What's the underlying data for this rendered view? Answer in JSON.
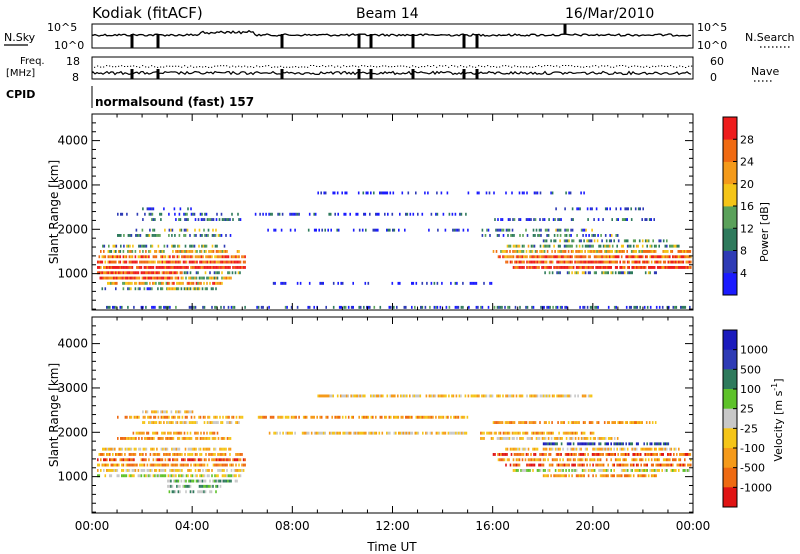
{
  "header": {
    "station": "Kodiak (fitACF)",
    "beam": "Beam 14",
    "date": "16/Mar/2010"
  },
  "panels": {
    "nsky_label": "N.Sky",
    "nsky_ticks": [
      "10^5",
      "10^0"
    ],
    "nsearch_label": "N.Search",
    "nsearch_ticks": [
      "10^5",
      "10^0"
    ],
    "freq_label_1": "Freq.",
    "freq_label_2": "[MHz]",
    "freq_ticks": [
      "18",
      "8"
    ],
    "nave_label": "Nave",
    "nave_ticks": [
      "60",
      "0"
    ],
    "cpid_label": "CPID",
    "cpid_value": "normalsound (fast) 157"
  },
  "colors": {
    "power_scale": [
      "#1b1bff",
      "#2e3bb5",
      "#2e7a5c",
      "#5aa15a",
      "#f5c518",
      "#f49a1a",
      "#f06a12",
      "#ee1c1c"
    ],
    "velocity_scale": [
      "#e01414",
      "#ee6a12",
      "#f59a1a",
      "#f5c518",
      "#c8c8c8",
      "#5ec22a",
      "#2e7a5c",
      "#2e3bb5",
      "#1b1bbd"
    ]
  },
  "chart_data": [
    {
      "type": "heatmap",
      "title": "Power",
      "xlabel": "",
      "ylabel": "Slant Range [km]",
      "x_ticks": [
        "00:00",
        "04:00",
        "08:00",
        "12:00",
        "16:00",
        "20:00",
        "00:00"
      ],
      "y_ticks": [
        "1000",
        "2000",
        "3000",
        "4000"
      ],
      "xlim_hours": [
        0,
        24
      ],
      "ylim_km": [
        180,
        4600
      ],
      "colorbar_label": "Power [dB]",
      "colorbar_ticks": [
        "4",
        "8",
        "12",
        "16",
        "20",
        "24",
        "28"
      ],
      "colorbar_range": [
        0,
        32
      ],
      "segments": [
        {
          "r0": 180,
          "r1": 300,
          "t0": 0.5,
          "t1": 24.0,
          "p": 0.2
        },
        {
          "r0": 600,
          "r1": 720,
          "t0": 0.2,
          "t1": 3.0,
          "p": 0.3
        },
        {
          "r0": 720,
          "r1": 840,
          "t0": 0.3,
          "t1": 3.0,
          "p": 0.6
        },
        {
          "r0": 840,
          "r1": 960,
          "t0": 0.3,
          "t1": 3.6,
          "p": 0.85
        },
        {
          "r0": 960,
          "r1": 1080,
          "t0": 0.2,
          "t1": 3.6,
          "p": 0.9
        },
        {
          "r0": 1080,
          "r1": 1200,
          "t0": 0.2,
          "t1": 6.1,
          "p": 0.95
        },
        {
          "r0": 1200,
          "r1": 1320,
          "t0": 0.2,
          "t1": 6.1,
          "p": 0.8
        },
        {
          "r0": 1320,
          "r1": 1440,
          "t0": 0.2,
          "t1": 6.1,
          "p": 0.75
        },
        {
          "r0": 1440,
          "r1": 1560,
          "t0": 0.2,
          "t1": 6.0,
          "p": 0.55
        },
        {
          "r0": 1560,
          "r1": 1680,
          "t0": 0.4,
          "t1": 5.5,
          "p": 0.4
        },
        {
          "r0": 1800,
          "r1": 1920,
          "t0": 1.0,
          "t1": 5.5,
          "p": 0.3
        },
        {
          "r0": 1920,
          "r1": 2040,
          "t0": 1.5,
          "t1": 5.0,
          "p": 0.35
        },
        {
          "r0": 2160,
          "r1": 2280,
          "t0": 2.0,
          "t1": 6.0,
          "p": 0.25
        },
        {
          "r0": 2280,
          "r1": 2400,
          "t0": 1.0,
          "t1": 6.0,
          "p": 0.2
        },
        {
          "r0": 2400,
          "r1": 2520,
          "t0": 2.0,
          "t1": 4.0,
          "p": 0.15
        },
        {
          "r0": 600,
          "r1": 720,
          "t0": 3.0,
          "t1": 5.0,
          "p": 0.45
        },
        {
          "r0": 720,
          "r1": 840,
          "t0": 3.0,
          "t1": 5.2,
          "p": 0.7
        },
        {
          "r0": 840,
          "r1": 960,
          "t0": 3.6,
          "t1": 5.8,
          "p": 0.55
        },
        {
          "r0": 960,
          "r1": 1080,
          "t0": 3.6,
          "t1": 5.9,
          "p": 0.4
        },
        {
          "r0": 1080,
          "r1": 1200,
          "t0": 16.8,
          "t1": 23.9,
          "p": 0.9
        },
        {
          "r0": 1200,
          "r1": 1320,
          "t0": 16.5,
          "t1": 23.9,
          "p": 0.85
        },
        {
          "r0": 1320,
          "r1": 1440,
          "t0": 16.2,
          "t1": 23.9,
          "p": 0.8
        },
        {
          "r0": 1440,
          "r1": 1560,
          "t0": 16.0,
          "t1": 23.9,
          "p": 0.65
        },
        {
          "r0": 1560,
          "r1": 1680,
          "t0": 16.5,
          "t1": 23.5,
          "p": 0.45
        },
        {
          "r0": 1680,
          "r1": 1800,
          "t0": 18.0,
          "t1": 23.0,
          "p": 0.35
        },
        {
          "r0": 1800,
          "r1": 1920,
          "t0": 15.5,
          "t1": 21.0,
          "p": 0.3
        },
        {
          "r0": 1920,
          "r1": 2040,
          "t0": 15.5,
          "t1": 20.0,
          "p": 0.3
        },
        {
          "r0": 2160,
          "r1": 2280,
          "t0": 16.0,
          "t1": 22.5,
          "p": 0.2
        },
        {
          "r0": 2400,
          "r1": 2520,
          "t0": 18.5,
          "t1": 22.0,
          "p": 0.15
        },
        {
          "r0": 960,
          "r1": 1080,
          "t0": 18.0,
          "t1": 22.5,
          "p": 0.35
        },
        {
          "r0": 1920,
          "r1": 2040,
          "t0": 7.0,
          "t1": 15.0,
          "p": 0.12
        },
        {
          "r0": 2280,
          "r1": 2400,
          "t0": 6.5,
          "t1": 15.0,
          "p": 0.1
        },
        {
          "r0": 2760,
          "r1": 2880,
          "t0": 9.0,
          "t1": 20.0,
          "p": 0.06
        },
        {
          "r0": 720,
          "r1": 840,
          "t0": 6.5,
          "t1": 16.0,
          "p": 0.05
        }
      ]
    },
    {
      "type": "heatmap",
      "title": "Velocity",
      "xlabel": "Time UT",
      "ylabel": "Slant Range [km]",
      "x_ticks": [
        "00:00",
        "04:00",
        "08:00",
        "12:00",
        "16:00",
        "20:00",
        "00:00"
      ],
      "y_ticks": [
        "1000",
        "2000",
        "3000",
        "4000"
      ],
      "xlim_hours": [
        0,
        24
      ],
      "ylim_km": [
        180,
        4600
      ],
      "colorbar_label": "Velocity [m s^-1]",
      "colorbar_ticks": [
        "1000",
        "500",
        "100",
        "25",
        "-25",
        "-100",
        "-500",
        "-1000"
      ],
      "segments": [
        {
          "r0": 600,
          "r1": 720,
          "t0": 3.0,
          "t1": 5.0,
          "v": 5
        },
        {
          "r0": 720,
          "r1": 840,
          "t0": 3.0,
          "t1": 5.2,
          "v": 5
        },
        {
          "r0": 840,
          "r1": 960,
          "t0": 3.0,
          "t1": 5.8,
          "v": 5
        },
        {
          "r0": 960,
          "r1": 1080,
          "t0": 0.2,
          "t1": 5.9,
          "v": 4
        },
        {
          "r0": 1080,
          "r1": 1200,
          "t0": 0.2,
          "t1": 6.1,
          "v": 3
        },
        {
          "r0": 1200,
          "r1": 1320,
          "t0": 0.2,
          "t1": 6.1,
          "v": 2
        },
        {
          "r0": 1320,
          "r1": 1440,
          "t0": 0.2,
          "t1": 6.1,
          "v": 1
        },
        {
          "r0": 1440,
          "r1": 1560,
          "t0": 0.2,
          "t1": 6.0,
          "v": 2
        },
        {
          "r0": 1560,
          "r1": 1680,
          "t0": 0.4,
          "t1": 5.5,
          "v": 3
        },
        {
          "r0": 1800,
          "r1": 1920,
          "t0": 1.0,
          "t1": 5.5,
          "v": 2
        },
        {
          "r0": 1920,
          "r1": 2040,
          "t0": 1.5,
          "t1": 5.0,
          "v": 2
        },
        {
          "r0": 2160,
          "r1": 2280,
          "t0": 2.0,
          "t1": 6.0,
          "v": 3
        },
        {
          "r0": 2280,
          "r1": 2400,
          "t0": 1.0,
          "t1": 6.0,
          "v": 2
        },
        {
          "r0": 2400,
          "r1": 2520,
          "t0": 2.0,
          "t1": 4.0,
          "v": 3
        },
        {
          "r0": 1080,
          "r1": 1200,
          "t0": 16.8,
          "t1": 23.9,
          "v": 4
        },
        {
          "r0": 1200,
          "r1": 1320,
          "t0": 16.5,
          "t1": 23.9,
          "v": 1
        },
        {
          "r0": 1320,
          "r1": 1440,
          "t0": 16.2,
          "t1": 23.9,
          "v": 2
        },
        {
          "r0": 1440,
          "r1": 1560,
          "t0": 16.0,
          "t1": 23.9,
          "v": 1
        },
        {
          "r0": 1560,
          "r1": 1680,
          "t0": 16.5,
          "t1": 23.5,
          "v": 3
        },
        {
          "r0": 1680,
          "r1": 1800,
          "t0": 18.0,
          "t1": 23.0,
          "v": 7
        },
        {
          "r0": 1800,
          "r1": 1920,
          "t0": 15.5,
          "t1": 21.0,
          "v": 3
        },
        {
          "r0": 1920,
          "r1": 2040,
          "t0": 15.5,
          "t1": 20.0,
          "v": 2
        },
        {
          "r0": 2160,
          "r1": 2280,
          "t0": 16.0,
          "t1": 22.5,
          "v": 2
        },
        {
          "r0": 960,
          "r1": 1080,
          "t0": 18.0,
          "t1": 22.5,
          "v": 2
        },
        {
          "r0": 1920,
          "r1": 2040,
          "t0": 7.0,
          "t1": 15.0,
          "v": 3
        },
        {
          "r0": 2280,
          "r1": 2400,
          "t0": 6.5,
          "t1": 15.0,
          "v": 2
        },
        {
          "r0": 2760,
          "r1": 2880,
          "t0": 9.0,
          "t1": 20.0,
          "v": 3
        }
      ]
    }
  ]
}
